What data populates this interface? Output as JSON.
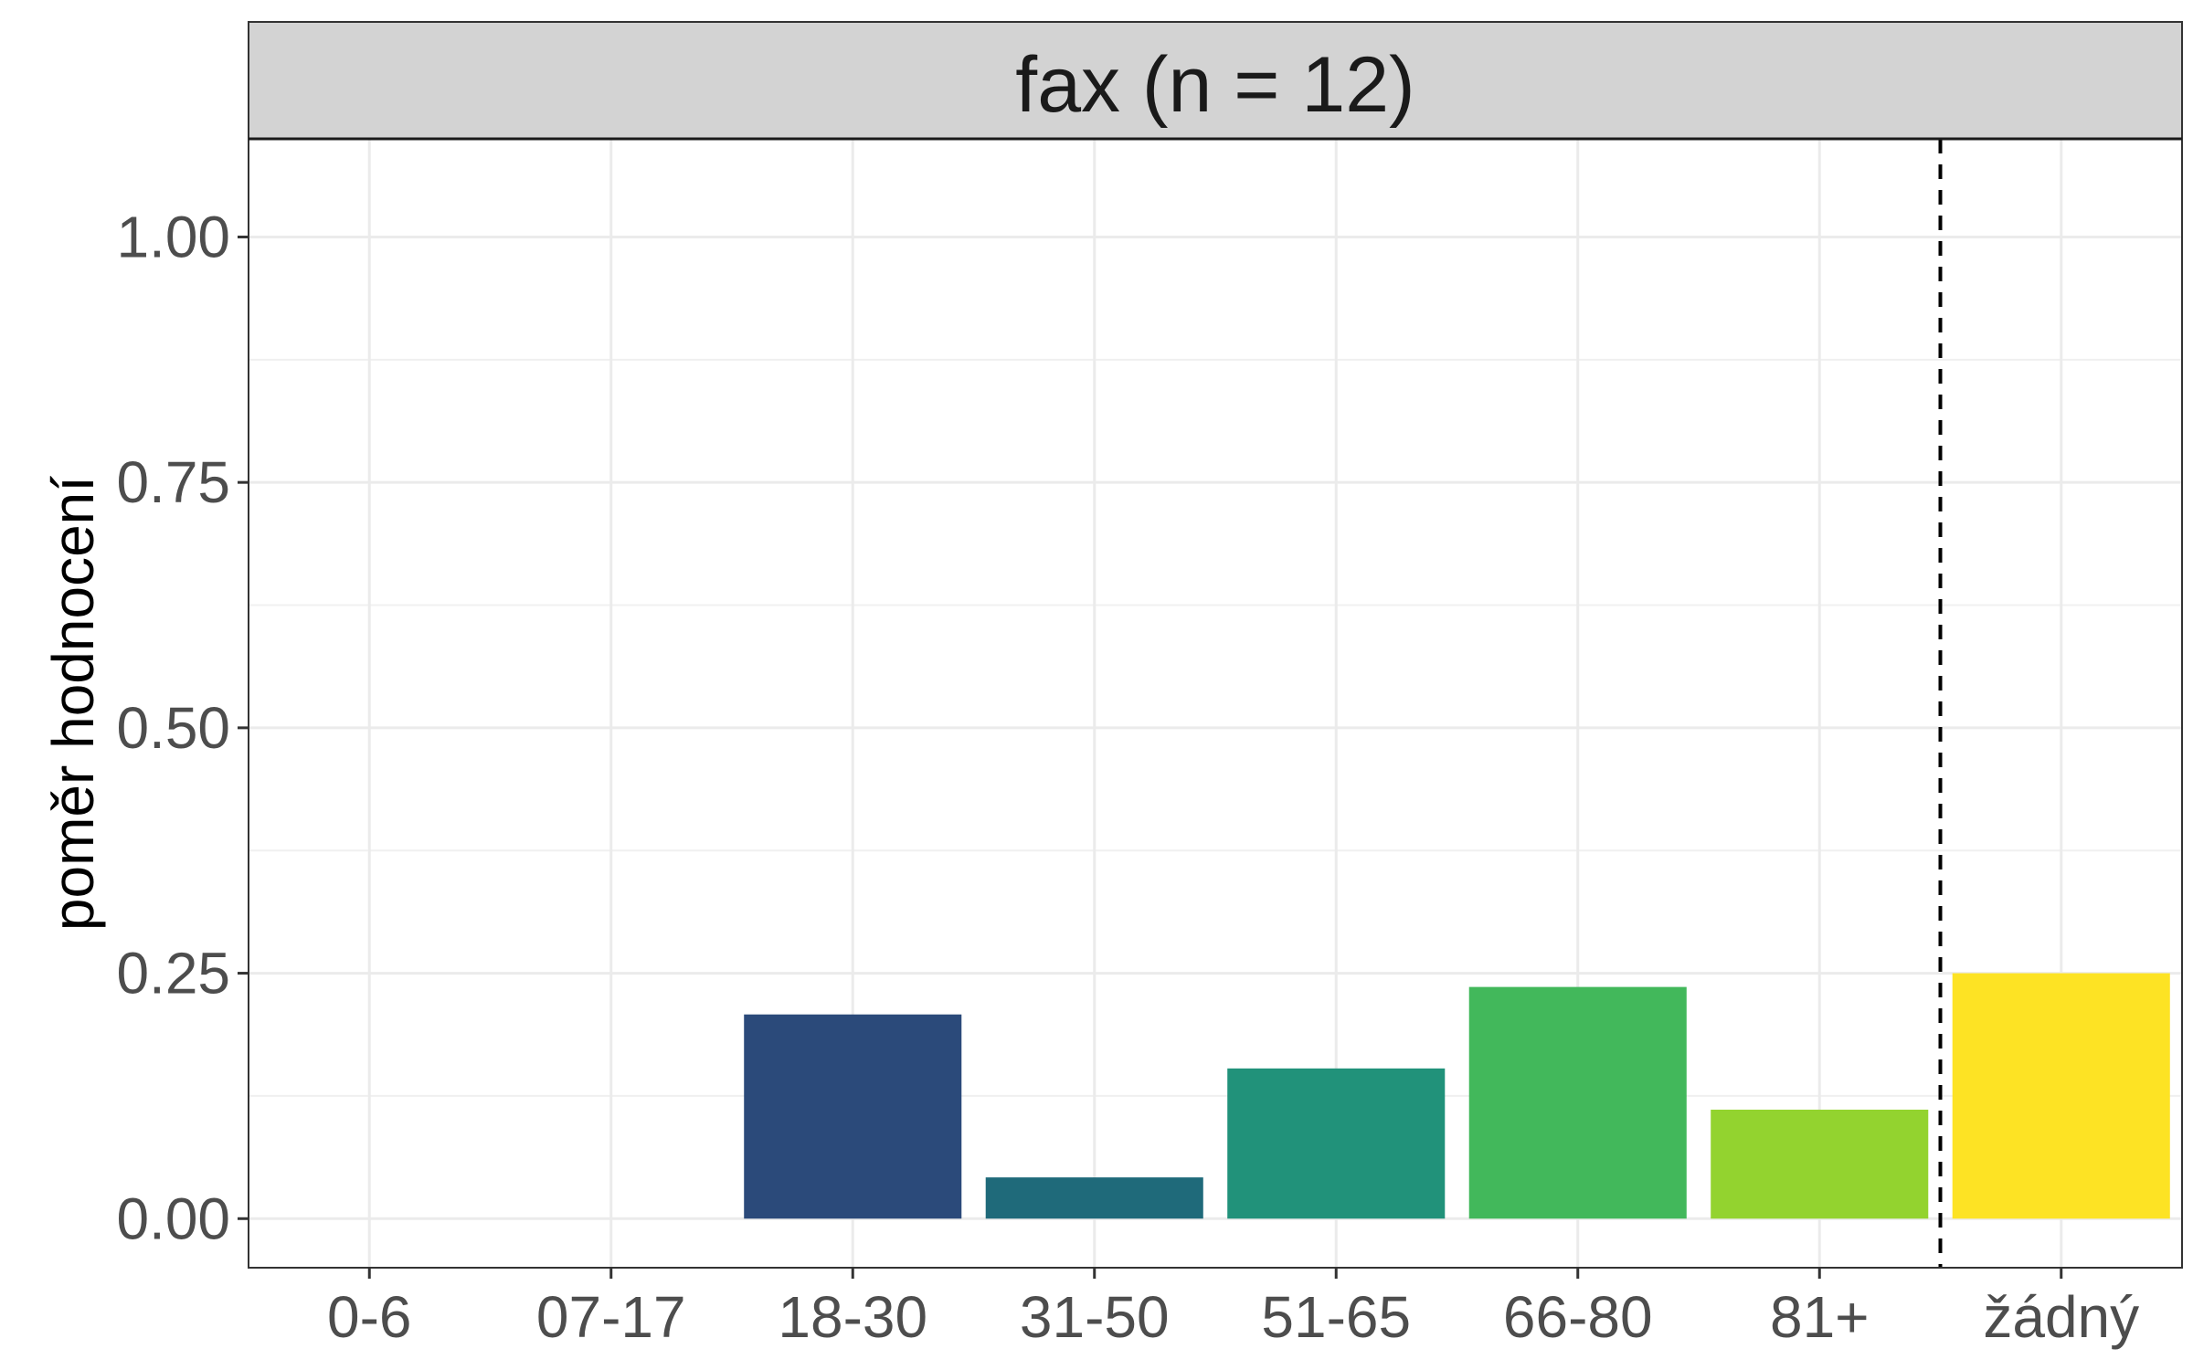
{
  "chart_data": {
    "type": "bar",
    "panel_title": "fax (n = 12)",
    "xlabel": "",
    "ylabel": "poměr hodnocení",
    "categories": [
      "0-6",
      "07-17",
      "18-30",
      "31-50",
      "51-65",
      "66-80",
      "81+",
      "žádný"
    ],
    "values": [
      0,
      0,
      0.208,
      0.042,
      0.153,
      0.236,
      0.111,
      0.25
    ],
    "colors": [
      "#440154",
      "#46337E",
      "#2B4A7A",
      "#1F6A7A",
      "#21927A",
      "#42B85B",
      "#93D32F",
      "#FDE324"
    ],
    "ylim": [
      -0.05,
      1.1
    ],
    "yticks": [
      0,
      0.25,
      0.5,
      0.75,
      1.0
    ],
    "ytick_labels": [
      "0.00",
      "0.25",
      "0.50",
      "0.75",
      "1.00"
    ],
    "reference_line": {
      "style": "dashed",
      "between_categories": [
        "81+",
        "žádný"
      ]
    },
    "grid": true,
    "legend": "none"
  }
}
